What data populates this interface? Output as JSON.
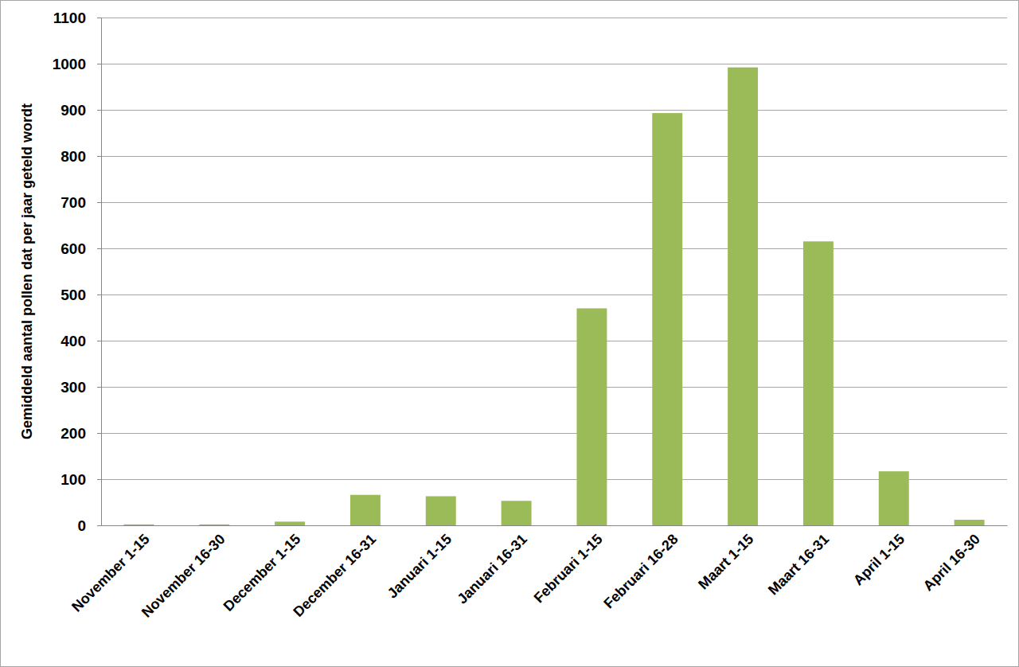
{
  "chart_data": {
    "type": "bar",
    "y_label": "Gemiddeld aantal pollen dat per jaar geteld wordt",
    "categories": [
      "November 1-15",
      "November 16-30",
      "December 1-15",
      "December 16-31",
      "Januari 1-15",
      "Januari 16-31",
      "Februari 1-15",
      "Februari 16-28",
      "Maart 1-15",
      "Maart 16-31",
      "April 1-15",
      "April 16-30"
    ],
    "values": [
      2,
      2,
      8,
      66,
      63,
      53,
      470,
      893,
      992,
      615,
      117,
      12
    ],
    "color": "#9bbb59",
    "ylim": [
      0,
      1100
    ],
    "yticks": [
      0,
      100,
      200,
      300,
      400,
      500,
      600,
      700,
      800,
      900,
      1000,
      1100
    ],
    "grid": true
  }
}
